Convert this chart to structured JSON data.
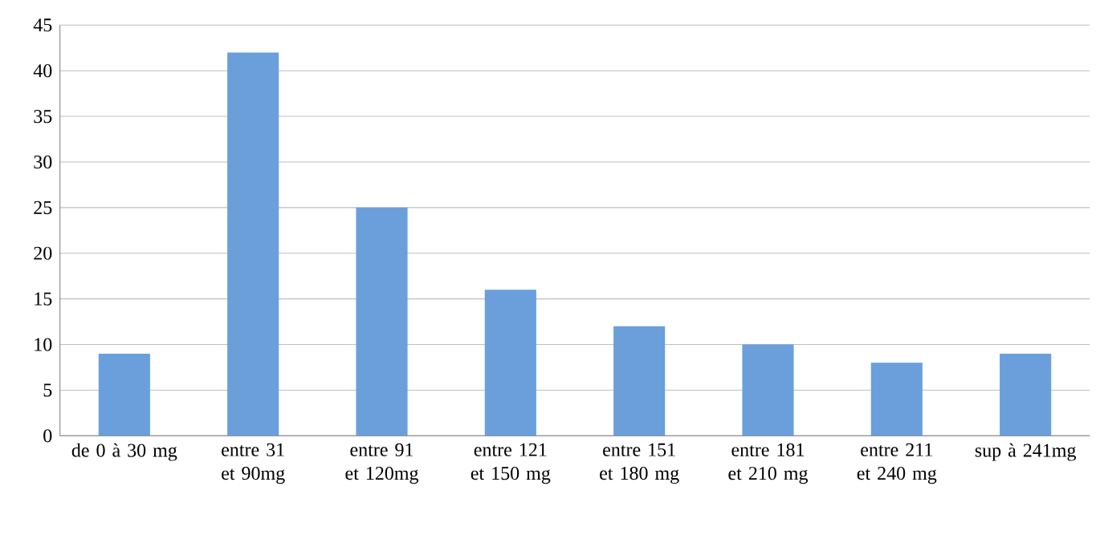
{
  "chart_data": {
    "type": "bar",
    "categories": [
      "de 0 à 30 mg",
      "entre 31 et 90mg",
      "entre 91 et 120mg",
      "entre 121 et 150 mg",
      "entre 151 et 180 mg",
      "entre 181 et 210 mg",
      "entre 211 et 240 mg",
      "sup à 241mg"
    ],
    "values": [
      9,
      42,
      25,
      16,
      12,
      10,
      8,
      9
    ],
    "color": "#6a9fdc",
    "ylim": [
      0,
      45
    ],
    "yticks": [
      0,
      5,
      10,
      15,
      20,
      25,
      30,
      35,
      40,
      45
    ],
    "grid": "y"
  }
}
